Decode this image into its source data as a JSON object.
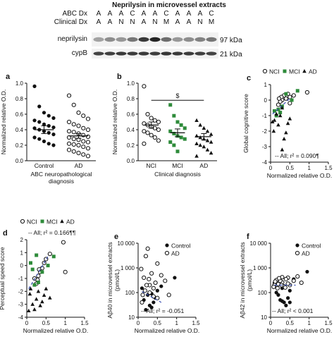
{
  "figure": {
    "blot": {
      "title": "Neprilysin in microvessel extracts",
      "abc_label": "ABC Dx",
      "clinical_label": "Clinical Dx",
      "abc_lanes": [
        "A",
        "A",
        "A",
        "C",
        "A",
        "A",
        "C",
        "A",
        "A",
        "A",
        "C"
      ],
      "clinical_lanes": [
        "A",
        "A",
        "N",
        "N",
        "A",
        "N",
        "M",
        "A",
        "A",
        "N",
        "M"
      ],
      "bands": [
        {
          "name": "neprilysin",
          "kda": "97 kDa",
          "intensity": [
            0.35,
            0.45,
            0.4,
            0.55,
            0.85,
            0.95,
            0.6,
            0.4,
            0.45,
            0.5,
            0.55
          ]
        },
        {
          "name": "cypB",
          "kda": "21 kDa",
          "intensity": [
            0.8,
            0.82,
            0.85,
            0.84,
            0.85,
            0.83,
            0.86,
            0.85,
            0.84,
            0.82,
            0.8
          ]
        }
      ]
    }
  },
  "chart_data": [
    {
      "panel": "a",
      "type": "scatter",
      "ylabel": "Normalized relative O.D.",
      "xlabel": "ABC neuropathological\ndiagnosis",
      "ylim": [
        0,
        1.0
      ],
      "yticks": [
        "0.0",
        "0.2",
        "0.4",
        "0.6",
        "0.8",
        "1.0"
      ],
      "categories": [
        "Control",
        "AD"
      ],
      "groups": [
        {
          "name": "Control",
          "marker": "filled-circle",
          "mean": 0.4,
          "sem": 0.05,
          "values": [
            0.96,
            0.7,
            0.62,
            0.58,
            0.55,
            0.52,
            0.5,
            0.47,
            0.45,
            0.43,
            0.42,
            0.4,
            0.38,
            0.36,
            0.34,
            0.3,
            0.28,
            0.25,
            0.22,
            0.2
          ]
        },
        {
          "name": "AD",
          "marker": "open-circle",
          "mean": 0.32,
          "sem": 0.03,
          "values": [
            0.84,
            0.72,
            0.62,
            0.58,
            0.54,
            0.5,
            0.47,
            0.45,
            0.42,
            0.4,
            0.38,
            0.37,
            0.35,
            0.33,
            0.31,
            0.3,
            0.28,
            0.27,
            0.25,
            0.24,
            0.22,
            0.21,
            0.2,
            0.18,
            0.16,
            0.14,
            0.12,
            0.1,
            0.08,
            0.06
          ]
        }
      ]
    },
    {
      "panel": "b",
      "type": "scatter",
      "ylabel": "Normalized relative O.D.",
      "xlabel": "Clinical diagnosis",
      "ylim": [
        0,
        1.0
      ],
      "yticks": [
        "0.0",
        "0.2",
        "0.4",
        "0.6",
        "0.8",
        "1.0"
      ],
      "categories": [
        "NCI",
        "MCI",
        "AD"
      ],
      "annotation": "$",
      "groups": [
        {
          "name": "NCI",
          "marker": "open-circle",
          "mean": 0.46,
          "sem": 0.04,
          "values": [
            0.96,
            0.6,
            0.55,
            0.52,
            0.5,
            0.48,
            0.46,
            0.44,
            0.42,
            0.4,
            0.38,
            0.36,
            0.33,
            0.3,
            0.26,
            0.22
          ]
        },
        {
          "name": "MCI",
          "marker": "filled-square",
          "mean": 0.36,
          "sem": 0.05,
          "values": [
            0.72,
            0.58,
            0.5,
            0.46,
            0.42,
            0.38,
            0.35,
            0.32,
            0.3,
            0.28,
            0.24,
            0.2,
            0.12
          ]
        },
        {
          "name": "AD",
          "marker": "filled-triangle",
          "mean": 0.31,
          "sem": 0.04,
          "values": [
            0.52,
            0.46,
            0.42,
            0.38,
            0.34,
            0.32,
            0.3,
            0.28,
            0.26,
            0.24,
            0.22,
            0.2,
            0.18,
            0.14,
            0.1,
            0.06
          ]
        }
      ]
    },
    {
      "panel": "c",
      "type": "scatter",
      "ylabel": "Global cognitive score",
      "xlabel": "Normalized relative O.D.",
      "xlim": [
        0,
        1.5
      ],
      "ylim": [
        -4,
        1
      ],
      "xticks": [
        "0",
        "0.5",
        "1",
        "1.5"
      ],
      "yticks": [
        "1",
        "0",
        "-1",
        "-2",
        "-3",
        "-4"
      ],
      "legend": [
        "NCI",
        "MCI",
        "AD"
      ],
      "annotation": "-- All; r² = 0.090¶",
      "fit": {
        "x": [
          0.05,
          0.5
        ],
        "y": [
          -0.9,
          0.1
        ]
      },
      "series": [
        {
          "name": "NCI",
          "marker": "open-circle",
          "points": [
            [
              0.95,
              0.5
            ],
            [
              0.6,
              0.3
            ],
            [
              0.5,
              0.2
            ],
            [
              0.45,
              0.4
            ],
            [
              0.4,
              0.1
            ],
            [
              0.35,
              0.3
            ],
            [
              0.3,
              0.0
            ],
            [
              0.28,
              0.2
            ],
            [
              0.25,
              -0.1
            ],
            [
              0.22,
              0.1
            ],
            [
              0.2,
              -0.3
            ],
            [
              0.5,
              -0.2
            ]
          ]
        },
        {
          "name": "MCI",
          "marker": "filled-square",
          "points": [
            [
              0.7,
              0.6
            ],
            [
              0.55,
              0.0
            ],
            [
              0.4,
              0.4
            ],
            [
              0.3,
              -0.4
            ],
            [
              0.25,
              -0.8
            ],
            [
              0.2,
              -0.6
            ],
            [
              0.15,
              -1.0
            ],
            [
              0.1,
              -0.7
            ]
          ]
        },
        {
          "name": "AD",
          "marker": "filled-triangle",
          "points": [
            [
              0.5,
              -1.2
            ],
            [
              0.45,
              -1.5
            ],
            [
              0.4,
              -2.1
            ],
            [
              0.35,
              -2.5
            ],
            [
              0.3,
              -3.2
            ],
            [
              0.25,
              -1.0
            ],
            [
              0.2,
              -1.6
            ],
            [
              0.15,
              -0.9
            ],
            [
              0.1,
              -1.3
            ],
            [
              0.08,
              -2.0
            ],
            [
              0.05,
              -1.4
            ],
            [
              0.3,
              -0.5
            ]
          ]
        }
      ]
    },
    {
      "panel": "d",
      "type": "scatter",
      "ylabel": "Perceptual speed score",
      "xlabel": "Normalized relative O.D.",
      "xlim": [
        0,
        1.5
      ],
      "ylim": [
        -4,
        2
      ],
      "xticks": [
        "0",
        "0.5",
        "1",
        "1.5"
      ],
      "yticks": [
        "2",
        "1",
        "0",
        "-1",
        "-2",
        "-3",
        "-4"
      ],
      "legend": [
        "NCI",
        "MCI",
        "AD"
      ],
      "annotation": "-- All; r² = 0.166¶¶",
      "fit": {
        "x": [
          0.05,
          0.55
        ],
        "y": [
          -1.8,
          0.7
        ]
      },
      "series": [
        {
          "name": "NCI",
          "marker": "open-circle",
          "points": [
            [
              0.95,
              1.8
            ],
            [
              0.6,
              0.9
            ],
            [
              0.5,
              0.5
            ],
            [
              0.45,
              0.2
            ],
            [
              0.4,
              -0.2
            ],
            [
              0.35,
              -0.5
            ],
            [
              0.3,
              -0.8
            ],
            [
              0.28,
              -1.1
            ],
            [
              0.25,
              -1.4
            ],
            [
              0.2,
              -1.0
            ],
            [
              1.0,
              -0.5
            ],
            [
              0.32,
              -0.3
            ]
          ]
        },
        {
          "name": "MCI",
          "marker": "filled-square",
          "points": [
            [
              0.7,
              0.7
            ],
            [
              0.55,
              0.0
            ],
            [
              0.4,
              -0.5
            ],
            [
              0.3,
              -1.3
            ],
            [
              0.25,
              0.8
            ],
            [
              0.2,
              -1.5
            ],
            [
              0.15,
              -0.3
            ],
            [
              0.1,
              0.2
            ]
          ]
        },
        {
          "name": "AD",
          "marker": "filled-triangle",
          "points": [
            [
              0.5,
              -1.8
            ],
            [
              0.45,
              -2.3
            ],
            [
              0.4,
              -2.8
            ],
            [
              0.35,
              -3.1
            ],
            [
              0.3,
              -2.0
            ],
            [
              0.25,
              -2.6
            ],
            [
              0.2,
              -3.4
            ],
            [
              0.15,
              -3.0
            ],
            [
              0.1,
              -1.8
            ],
            [
              0.08,
              -2.2
            ],
            [
              0.05,
              -3.5
            ],
            [
              0.6,
              -2.5
            ]
          ]
        }
      ]
    },
    {
      "panel": "e",
      "type": "scatter",
      "ylabel": "Aβ40 in microvessel extracts\n(pmol/L)",
      "xlabel": "Normalized relative O.D.",
      "xlim": [
        0,
        1.5
      ],
      "ylim_log10": [
        1,
        4
      ],
      "xticks": [
        "0",
        "0.5",
        "1",
        "1.5"
      ],
      "yticks": [
        "10 000",
        "1 000",
        "100",
        "10"
      ],
      "legend": [
        "Control",
        "AD"
      ],
      "annotation": "-- All; r² = -0.051",
      "fit": {
        "x": [
          0.1,
          0.6
        ],
        "y": [
          110,
          40
        ]
      },
      "series": [
        {
          "name": "Control",
          "marker": "filled-circle",
          "points": [
            [
              0.95,
              400
            ],
            [
              0.6,
              180
            ],
            [
              0.5,
              120
            ],
            [
              0.45,
              60
            ],
            [
              0.4,
              40
            ],
            [
              0.35,
              25
            ],
            [
              0.3,
              30
            ],
            [
              0.25,
              80
            ],
            [
              0.2,
              20
            ],
            [
              0.15,
              50
            ],
            [
              0.1,
              150
            ],
            [
              0.35,
              90
            ]
          ]
        },
        {
          "name": "AD",
          "marker": "open-circle",
          "points": [
            [
              0.8,
              80
            ],
            [
              0.7,
              300
            ],
            [
              0.6,
              500
            ],
            [
              0.5,
              1500
            ],
            [
              0.45,
              250
            ],
            [
              0.4,
              150
            ],
            [
              0.35,
              600
            ],
            [
              0.3,
              200
            ],
            [
              0.25,
              6000
            ],
            [
              0.2,
              3000
            ],
            [
              0.18,
              120
            ],
            [
              0.15,
              400
            ],
            [
              0.12,
              80
            ],
            [
              0.1,
              40
            ],
            [
              0.08,
              900
            ],
            [
              0.3,
              100
            ],
            [
              0.5,
              60
            ],
            [
              0.4,
              70
            ],
            [
              0.22,
              200
            ],
            [
              0.28,
              350
            ]
          ]
        }
      ]
    },
    {
      "panel": "f",
      "type": "scatter",
      "ylabel": "Aβ42 in microvessel extracts\n(pmol/L)",
      "xlabel": "Normalized relative O.D.",
      "xlim": [
        0,
        1.5
      ],
      "ylim_log10": [
        1,
        4
      ],
      "xticks": [
        "0",
        "0.5",
        "1",
        "1.5"
      ],
      "yticks": [
        "10 000",
        "1 000",
        "100",
        "10"
      ],
      "legend": [
        "Control",
        "AD"
      ],
      "annotation": "-- All; r² < 0.001",
      "fit": {
        "x": [
          0.1,
          0.65
        ],
        "y": [
          200,
          200
        ]
      },
      "series": [
        {
          "name": "Control",
          "marker": "filled-circle",
          "points": [
            [
              0.95,
              700
            ],
            [
              0.6,
              350
            ],
            [
              0.5,
              120
            ],
            [
              0.45,
              60
            ],
            [
              0.4,
              30
            ],
            [
              0.35,
              40
            ],
            [
              0.3,
              45
            ],
            [
              0.25,
              50
            ],
            [
              0.2,
              80
            ],
            [
              0.15,
              100
            ],
            [
              0.1,
              250
            ],
            [
              0.3,
              150
            ],
            [
              0.5,
              40
            ]
          ]
        },
        {
          "name": "AD",
          "marker": "open-circle",
          "points": [
            [
              0.8,
              250
            ],
            [
              0.7,
              450
            ],
            [
              0.6,
              300
            ],
            [
              0.5,
              200
            ],
            [
              0.45,
              400
            ],
            [
              0.4,
              350
            ],
            [
              0.35,
              180
            ],
            [
              0.3,
              260
            ],
            [
              0.25,
              300
            ],
            [
              0.2,
              220
            ],
            [
              0.18,
              150
            ],
            [
              0.15,
              320
            ],
            [
              0.12,
              280
            ],
            [
              0.1,
              200
            ],
            [
              0.08,
              170
            ],
            [
              0.3,
              420
            ],
            [
              0.45,
              230
            ],
            [
              0.22,
              380
            ],
            [
              0.38,
              160
            ],
            [
              0.28,
              200
            ]
          ]
        }
      ]
    }
  ]
}
